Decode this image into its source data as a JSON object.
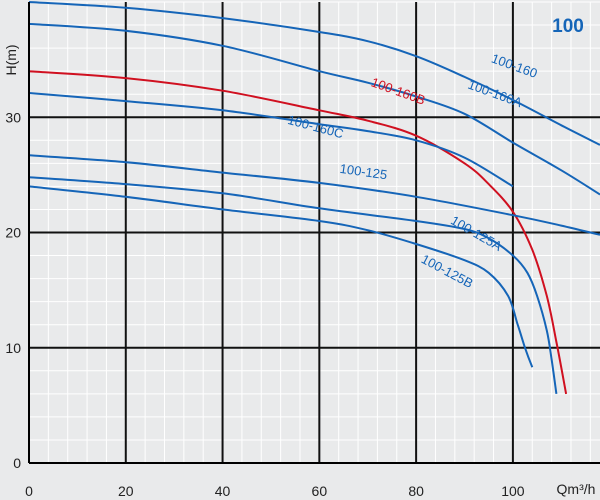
{
  "chart_data": {
    "type": "line",
    "title": "",
    "badge": "100",
    "xlabel": "Qm³/h",
    "ylabel": "H(m)",
    "xlim": [
      0,
      118
    ],
    "ylim": [
      0,
      40
    ],
    "x_ticks": [
      0,
      20,
      40,
      60,
      80,
      100
    ],
    "y_ticks": [
      0,
      10,
      20,
      30
    ],
    "grid": true,
    "colors": {
      "blue": "#1565b8",
      "red": "#d01020",
      "major_grid": "#111111",
      "minor_grid": "#ffffff"
    },
    "series": [
      {
        "name": "100-160",
        "color": "#1565b8",
        "points": [
          [
            0,
            40
          ],
          [
            20,
            39.5
          ],
          [
            40,
            38.6
          ],
          [
            60,
            37.4
          ],
          [
            70,
            36.6
          ],
          [
            80,
            35.3
          ],
          [
            90,
            33.5
          ],
          [
            100,
            31.5
          ],
          [
            110,
            29.3
          ],
          [
            118,
            27.6
          ]
        ]
      },
      {
        "name": "100-160A",
        "color": "#1565b8",
        "points": [
          [
            0,
            38.1
          ],
          [
            20,
            37.5
          ],
          [
            40,
            36.2
          ],
          [
            60,
            34
          ],
          [
            70,
            33
          ],
          [
            80,
            31.8
          ],
          [
            90,
            30.3
          ],
          [
            100,
            27.8
          ],
          [
            110,
            25.4
          ],
          [
            118,
            23.3
          ]
        ]
      },
      {
        "name": "100-160B",
        "color": "#d01020",
        "points": [
          [
            0,
            34
          ],
          [
            20,
            33.4
          ],
          [
            40,
            32.3
          ],
          [
            60,
            30.6
          ],
          [
            70,
            29.7
          ],
          [
            80,
            28.4
          ],
          [
            90,
            26
          ],
          [
            95,
            24.2
          ],
          [
            100,
            21.8
          ],
          [
            104,
            18.5
          ],
          [
            107,
            14.5
          ],
          [
            109,
            10.5
          ],
          [
            111,
            6
          ]
        ]
      },
      {
        "name": "100-160C",
        "color": "#1565b8",
        "points": [
          [
            0,
            32.1
          ],
          [
            20,
            31.4
          ],
          [
            40,
            30.6
          ],
          [
            60,
            29.4
          ],
          [
            70,
            28.8
          ],
          [
            80,
            28
          ],
          [
            90,
            26.5
          ],
          [
            100,
            24
          ]
        ]
      },
      {
        "name": "100-125",
        "color": "#1565b8",
        "points": [
          [
            0,
            26.7
          ],
          [
            20,
            26.1
          ],
          [
            40,
            25.2
          ],
          [
            60,
            24.3
          ],
          [
            80,
            23.1
          ],
          [
            100,
            21.5
          ],
          [
            110,
            20.6
          ],
          [
            118,
            19.8
          ]
        ]
      },
      {
        "name": "100-125A",
        "color": "#1565b8",
        "points": [
          [
            0,
            24.8
          ],
          [
            20,
            24.2
          ],
          [
            40,
            23.4
          ],
          [
            60,
            22.1
          ],
          [
            80,
            21
          ],
          [
            90,
            20.3
          ],
          [
            95,
            19.5
          ],
          [
            100,
            18
          ],
          [
            103,
            16.5
          ],
          [
            105,
            14.5
          ],
          [
            107,
            11.5
          ],
          [
            108,
            9
          ],
          [
            109,
            6
          ]
        ]
      },
      {
        "name": "100-125B",
        "color": "#1565b8",
        "points": [
          [
            0,
            24
          ],
          [
            20,
            23.1
          ],
          [
            40,
            22
          ],
          [
            60,
            21
          ],
          [
            70,
            20.2
          ],
          [
            80,
            19
          ],
          [
            90,
            17.6
          ],
          [
            95,
            16.5
          ],
          [
            99,
            14.5
          ],
          [
            101,
            12
          ],
          [
            102.5,
            10
          ],
          [
            104,
            8.3
          ]
        ]
      }
    ],
    "annotations": [
      {
        "text": "100-160",
        "x": 100,
        "y": 34.1,
        "color": "#1565b8",
        "rotate": 20,
        "key": "a0"
      },
      {
        "text": "100-160A",
        "x": 96,
        "y": 31.7,
        "color": "#1565b8",
        "rotate": 20,
        "key": "a1"
      },
      {
        "text": "100-160B",
        "x": 76,
        "y": 31.9,
        "color": "#d01020",
        "rotate": 20,
        "key": "a2"
      },
      {
        "text": "100-160C",
        "x": 59,
        "y": 28.8,
        "color": "#1565b8",
        "rotate": 15,
        "key": "a3"
      },
      {
        "text": "100-125",
        "x": 69,
        "y": 24.9,
        "color": "#1565b8",
        "rotate": 8,
        "key": "a4"
      },
      {
        "text": "100-125A",
        "x": 92,
        "y": 19.6,
        "color": "#1565b8",
        "rotate": 30,
        "key": "a5"
      },
      {
        "text": "100-125B",
        "x": 86,
        "y": 16.3,
        "color": "#1565b8",
        "rotate": 28,
        "key": "a6"
      }
    ]
  }
}
